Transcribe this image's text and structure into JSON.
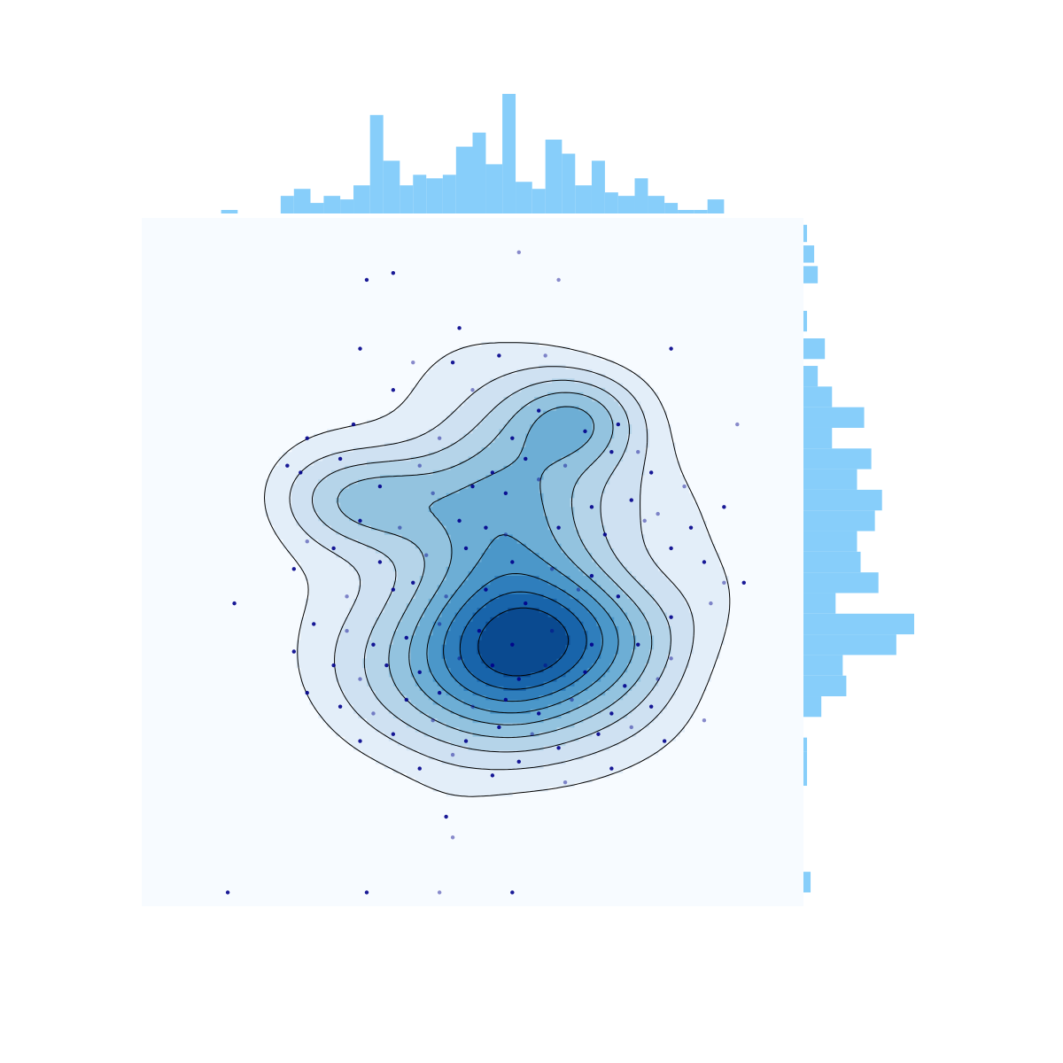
{
  "chart_data": {
    "type": "scatter",
    "title": "",
    "xlabel": "",
    "ylabel": "",
    "xlim": [
      0,
      1
    ],
    "ylim": [
      0,
      1
    ],
    "grid": false,
    "legend": "none",
    "colors": {
      "background": "#f7fbff",
      "histogram": "#87cefa",
      "point": "#00008b",
      "contour_line": "#000000",
      "levels": [
        "#e3eef9",
        "#cfe1f2",
        "#b5d4e9",
        "#93c3df",
        "#6daed5",
        "#4b97c9",
        "#2f7ebc",
        "#1864aa",
        "#0a4a90"
      ]
    },
    "points": [
      [
        0.57,
        0.95
      ],
      [
        0.38,
        0.92
      ],
      [
        0.34,
        0.91
      ],
      [
        0.63,
        0.91
      ],
      [
        0.48,
        0.84
      ],
      [
        0.33,
        0.81
      ],
      [
        0.41,
        0.79
      ],
      [
        0.47,
        0.79
      ],
      [
        0.54,
        0.8
      ],
      [
        0.61,
        0.8
      ],
      [
        0.8,
        0.81
      ],
      [
        0.38,
        0.75
      ],
      [
        0.5,
        0.75
      ],
      [
        0.6,
        0.72
      ],
      [
        0.72,
        0.7
      ],
      [
        0.9,
        0.7
      ],
      [
        0.25,
        0.68
      ],
      [
        0.32,
        0.7
      ],
      [
        0.45,
        0.68
      ],
      [
        0.56,
        0.68
      ],
      [
        0.67,
        0.69
      ],
      [
        0.75,
        0.66
      ],
      [
        0.22,
        0.64
      ],
      [
        0.3,
        0.65
      ],
      [
        0.42,
        0.64
      ],
      [
        0.53,
        0.63
      ],
      [
        0.58,
        0.65
      ],
      [
        0.64,
        0.64
      ],
      [
        0.71,
        0.66
      ],
      [
        0.77,
        0.63
      ],
      [
        0.82,
        0.61
      ],
      [
        0.24,
        0.63
      ],
      [
        0.36,
        0.61
      ],
      [
        0.44,
        0.6
      ],
      [
        0.5,
        0.61
      ],
      [
        0.55,
        0.6
      ],
      [
        0.6,
        0.62
      ],
      [
        0.68,
        0.58
      ],
      [
        0.74,
        0.59
      ],
      [
        0.78,
        0.57
      ],
      [
        0.88,
        0.58
      ],
      [
        0.33,
        0.56
      ],
      [
        0.39,
        0.55
      ],
      [
        0.48,
        0.56
      ],
      [
        0.52,
        0.55
      ],
      [
        0.55,
        0.54
      ],
      [
        0.63,
        0.55
      ],
      [
        0.7,
        0.54
      ],
      [
        0.76,
        0.56
      ],
      [
        0.83,
        0.55
      ],
      [
        0.8,
        0.52
      ],
      [
        0.25,
        0.53
      ],
      [
        0.29,
        0.52
      ],
      [
        0.36,
        0.5
      ],
      [
        0.43,
        0.51
      ],
      [
        0.49,
        0.52
      ],
      [
        0.56,
        0.5
      ],
      [
        0.62,
        0.49
      ],
      [
        0.68,
        0.48
      ],
      [
        0.85,
        0.5
      ],
      [
        0.88,
        0.47
      ],
      [
        0.14,
        0.44
      ],
      [
        0.23,
        0.49
      ],
      [
        0.31,
        0.45
      ],
      [
        0.38,
        0.46
      ],
      [
        0.41,
        0.47
      ],
      [
        0.46,
        0.45
      ],
      [
        0.52,
        0.46
      ],
      [
        0.58,
        0.44
      ],
      [
        0.66,
        0.46
      ],
      [
        0.72,
        0.45
      ],
      [
        0.8,
        0.42
      ],
      [
        0.86,
        0.44
      ],
      [
        0.91,
        0.47
      ],
      [
        0.26,
        0.41
      ],
      [
        0.31,
        0.4
      ],
      [
        0.35,
        0.38
      ],
      [
        0.4,
        0.39
      ],
      [
        0.45,
        0.41
      ],
      [
        0.51,
        0.4
      ],
      [
        0.56,
        0.38
      ],
      [
        0.62,
        0.4
      ],
      [
        0.68,
        0.38
      ],
      [
        0.75,
        0.38
      ],
      [
        0.8,
        0.36
      ],
      [
        0.23,
        0.37
      ],
      [
        0.29,
        0.35
      ],
      [
        0.33,
        0.33
      ],
      [
        0.37,
        0.35
      ],
      [
        0.42,
        0.34
      ],
      [
        0.48,
        0.36
      ],
      [
        0.53,
        0.35
      ],
      [
        0.57,
        0.33
      ],
      [
        0.61,
        0.35
      ],
      [
        0.67,
        0.34
      ],
      [
        0.73,
        0.32
      ],
      [
        0.78,
        0.33
      ],
      [
        0.25,
        0.31
      ],
      [
        0.3,
        0.29
      ],
      [
        0.35,
        0.28
      ],
      [
        0.4,
        0.3
      ],
      [
        0.45,
        0.31
      ],
      [
        0.5,
        0.29
      ],
      [
        0.55,
        0.3
      ],
      [
        0.6,
        0.28
      ],
      [
        0.65,
        0.3
      ],
      [
        0.71,
        0.28
      ],
      [
        0.77,
        0.29
      ],
      [
        0.85,
        0.27
      ],
      [
        0.33,
        0.24
      ],
      [
        0.38,
        0.25
      ],
      [
        0.44,
        0.27
      ],
      [
        0.49,
        0.24
      ],
      [
        0.54,
        0.26
      ],
      [
        0.59,
        0.25
      ],
      [
        0.63,
        0.23
      ],
      [
        0.69,
        0.25
      ],
      [
        0.74,
        0.26
      ],
      [
        0.79,
        0.24
      ],
      [
        0.42,
        0.2
      ],
      [
        0.47,
        0.22
      ],
      [
        0.53,
        0.19
      ],
      [
        0.57,
        0.21
      ],
      [
        0.64,
        0.18
      ],
      [
        0.71,
        0.2
      ],
      [
        0.46,
        0.13
      ],
      [
        0.47,
        0.1
      ],
      [
        0.13,
        0.02
      ],
      [
        0.34,
        0.02
      ],
      [
        0.45,
        0.02
      ],
      [
        0.56,
        0.02
      ]
    ],
    "density_peaks": [
      {
        "x": 0.55,
        "y": 0.35,
        "level": 9,
        "sx": 0.13,
        "sy": 0.08
      },
      {
        "x": 0.56,
        "y": 0.55,
        "level": 7,
        "sx": 0.1,
        "sy": 0.13
      },
      {
        "x": 0.66,
        "y": 0.71,
        "level": 6,
        "sx": 0.07,
        "sy": 0.05
      },
      {
        "x": 0.34,
        "y": 0.59,
        "level": 6,
        "sx": 0.09,
        "sy": 0.05
      },
      {
        "x": 0.65,
        "y": 0.4,
        "level": 5,
        "sx": 0.12,
        "sy": 0.06
      }
    ],
    "x_histogram": [
      {
        "x0": 0.12,
        "x1": 0.145,
        "count": 1
      },
      {
        "x0": 0.21,
        "x1": 0.23,
        "count": 5
      },
      {
        "x0": 0.23,
        "x1": 0.255,
        "count": 7
      },
      {
        "x0": 0.255,
        "x1": 0.275,
        "count": 3
      },
      {
        "x0": 0.275,
        "x1": 0.3,
        "count": 5
      },
      {
        "x0": 0.3,
        "x1": 0.32,
        "count": 4
      },
      {
        "x0": 0.32,
        "x1": 0.345,
        "count": 8
      },
      {
        "x0": 0.345,
        "x1": 0.365,
        "count": 28
      },
      {
        "x0": 0.365,
        "x1": 0.39,
        "count": 15
      },
      {
        "x0": 0.39,
        "x1": 0.41,
        "count": 8
      },
      {
        "x0": 0.41,
        "x1": 0.43,
        "count": 11
      },
      {
        "x0": 0.43,
        "x1": 0.455,
        "count": 10
      },
      {
        "x0": 0.455,
        "x1": 0.475,
        "count": 11
      },
      {
        "x0": 0.475,
        "x1": 0.5,
        "count": 19
      },
      {
        "x0": 0.5,
        "x1": 0.52,
        "count": 23
      },
      {
        "x0": 0.52,
        "x1": 0.545,
        "count": 14
      },
      {
        "x0": 0.545,
        "x1": 0.565,
        "count": 34
      },
      {
        "x0": 0.565,
        "x1": 0.59,
        "count": 9
      },
      {
        "x0": 0.59,
        "x1": 0.61,
        "count": 7
      },
      {
        "x0": 0.61,
        "x1": 0.635,
        "count": 21
      },
      {
        "x0": 0.635,
        "x1": 0.655,
        "count": 17
      },
      {
        "x0": 0.655,
        "x1": 0.68,
        "count": 8
      },
      {
        "x0": 0.68,
        "x1": 0.7,
        "count": 15
      },
      {
        "x0": 0.7,
        "x1": 0.72,
        "count": 6
      },
      {
        "x0": 0.72,
        "x1": 0.745,
        "count": 5
      },
      {
        "x0": 0.745,
        "x1": 0.765,
        "count": 10
      },
      {
        "x0": 0.765,
        "x1": 0.79,
        "count": 5
      },
      {
        "x0": 0.79,
        "x1": 0.81,
        "count": 3
      },
      {
        "x0": 0.81,
        "x1": 0.835,
        "count": 1
      },
      {
        "x0": 0.835,
        "x1": 0.855,
        "count": 1
      },
      {
        "x0": 0.855,
        "x1": 0.88,
        "count": 4
      }
    ],
    "y_histogram": [
      {
        "y0": 0.965,
        "y1": 0.99,
        "count": 1
      },
      {
        "y0": 0.935,
        "y1": 0.96,
        "count": 3
      },
      {
        "y0": 0.905,
        "y1": 0.93,
        "count": 4
      },
      {
        "y0": 0.835,
        "y1": 0.865,
        "count": 1
      },
      {
        "y0": 0.795,
        "y1": 0.825,
        "count": 6
      },
      {
        "y0": 0.755,
        "y1": 0.785,
        "count": 4
      },
      {
        "y0": 0.725,
        "y1": 0.755,
        "count": 8
      },
      {
        "y0": 0.695,
        "y1": 0.725,
        "count": 17
      },
      {
        "y0": 0.665,
        "y1": 0.695,
        "count": 8
      },
      {
        "y0": 0.635,
        "y1": 0.665,
        "count": 19
      },
      {
        "y0": 0.605,
        "y1": 0.635,
        "count": 15
      },
      {
        "y0": 0.575,
        "y1": 0.605,
        "count": 22
      },
      {
        "y0": 0.545,
        "y1": 0.575,
        "count": 20
      },
      {
        "y0": 0.515,
        "y1": 0.545,
        "count": 15
      },
      {
        "y0": 0.485,
        "y1": 0.515,
        "count": 16
      },
      {
        "y0": 0.455,
        "y1": 0.485,
        "count": 21
      },
      {
        "y0": 0.425,
        "y1": 0.455,
        "count": 9
      },
      {
        "y0": 0.395,
        "y1": 0.425,
        "count": 31
      },
      {
        "y0": 0.365,
        "y1": 0.395,
        "count": 26
      },
      {
        "y0": 0.335,
        "y1": 0.365,
        "count": 11
      },
      {
        "y0": 0.305,
        "y1": 0.335,
        "count": 12
      },
      {
        "y0": 0.275,
        "y1": 0.305,
        "count": 5
      },
      {
        "y0": 0.225,
        "y1": 0.245,
        "count": 1
      },
      {
        "y0": 0.195,
        "y1": 0.225,
        "count": 1
      },
      {
        "y0": 0.175,
        "y1": 0.195,
        "count": 1
      },
      {
        "y0": 0.02,
        "y1": 0.05,
        "count": 2
      }
    ]
  }
}
